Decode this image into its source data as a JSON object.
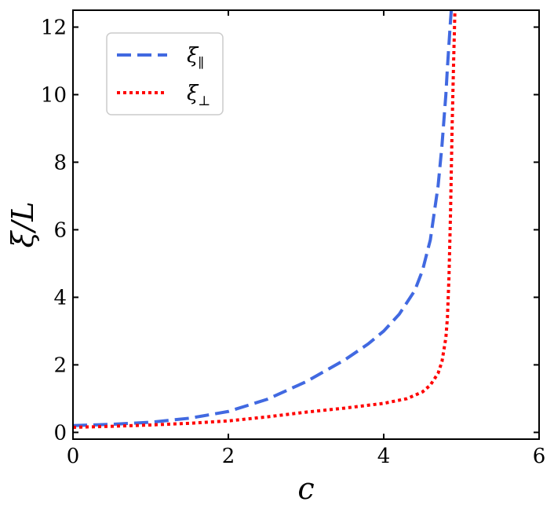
{
  "chart_data": {
    "type": "line",
    "xlabel": "c",
    "ylabel": "ξ/L",
    "xlim": [
      0,
      6
    ],
    "ylim": [
      -0.2,
      12.5
    ],
    "xticks": [
      0,
      2,
      4,
      6
    ],
    "yticks": [
      0,
      2,
      4,
      6,
      8,
      10,
      12
    ],
    "grid": false,
    "legend_position": "top-left",
    "series": [
      {
        "name": "ξ∥",
        "name_base": "ξ",
        "name_sub": "∥",
        "style": "dashed",
        "color": "#4169E1",
        "x": [
          0,
          0.5,
          1.0,
          1.5,
          2.0,
          2.5,
          3.0,
          3.5,
          3.8,
          4.0,
          4.2,
          4.4,
          4.5,
          4.6,
          4.7,
          4.75,
          4.8,
          4.82,
          4.84,
          4.86,
          4.87,
          4.88
        ],
        "y": [
          0.2,
          0.24,
          0.3,
          0.42,
          0.62,
          0.98,
          1.5,
          2.15,
          2.62,
          3.0,
          3.5,
          4.2,
          4.8,
          5.7,
          7.3,
          8.5,
          10.0,
          10.8,
          11.5,
          12.2,
          12.5,
          12.8
        ]
      },
      {
        "name": "ξ⊥",
        "name_base": "ξ",
        "name_sub": "⊥",
        "style": "dotted",
        "color": "#FF0000",
        "x": [
          0,
          0.5,
          1.0,
          1.5,
          2.0,
          2.5,
          3.0,
          3.5,
          4.0,
          4.3,
          4.5,
          4.6,
          4.7,
          4.75,
          4.8,
          4.82,
          4.84,
          4.86,
          4.88,
          4.9,
          4.92
        ],
        "y": [
          0.15,
          0.18,
          0.22,
          0.27,
          0.34,
          0.46,
          0.6,
          0.72,
          0.86,
          1.0,
          1.2,
          1.4,
          1.75,
          2.1,
          2.8,
          3.4,
          4.6,
          6.5,
          9.0,
          11.0,
          12.8
        ]
      }
    ]
  }
}
